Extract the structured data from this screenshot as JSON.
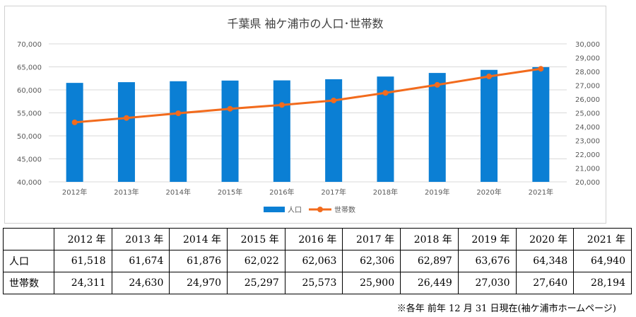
{
  "chart_data": {
    "type": "bar+line",
    "title": "千葉県 袖ケ浦市の人口･世帯数",
    "categories": [
      "2012年",
      "2013年",
      "2014年",
      "2015年",
      "2016年",
      "2017年",
      "2018年",
      "2019年",
      "2020年",
      "2021年"
    ],
    "series": [
      {
        "name": "人口",
        "type": "bar",
        "axis": "left",
        "color": "#0b7fd4",
        "values": [
          61518,
          61674,
          61876,
          62022,
          62063,
          62306,
          62897,
          63676,
          64348,
          64940
        ]
      },
      {
        "name": "世帯数",
        "type": "line",
        "axis": "right",
        "color": "#f26b1d",
        "values": [
          24311,
          24630,
          24970,
          25297,
          25573,
          25900,
          26449,
          27030,
          27640,
          28194
        ]
      }
    ],
    "y_left": {
      "min": 40000,
      "max": 70000,
      "step": 5000,
      "ticks": [
        "40,000",
        "45,000",
        "50,000",
        "55,000",
        "60,000",
        "65,000",
        "70,000"
      ]
    },
    "y_right": {
      "min": 20000,
      "max": 30000,
      "step": 1000,
      "ticks": [
        "20,000",
        "21,000",
        "22,000",
        "23,000",
        "24,000",
        "25,000",
        "26,000",
        "27,000",
        "28,000",
        "29,000",
        "30,000"
      ]
    },
    "grid": true,
    "legend": "bottom-center"
  },
  "table": {
    "corner": "",
    "headers": [
      "2012 年",
      "2013 年",
      "2014 年",
      "2015 年",
      "2016 年",
      "2017 年",
      "2018 年",
      "2019 年",
      "2020 年",
      "2021 年"
    ],
    "rows": [
      {
        "label": "人口",
        "cells": [
          "61,518",
          "61,674",
          "61,876",
          "62,022",
          "62,063",
          "62,306",
          "62,897",
          "63,676",
          "64,348",
          "64,940"
        ]
      },
      {
        "label": "世帯数",
        "cells": [
          "24,311",
          "24,630",
          "24,970",
          "25,297",
          "25,573",
          "25,900",
          "26,449",
          "27,030",
          "27,640",
          "28,194"
        ]
      }
    ]
  },
  "footnote": "※各年 前年 12 月 31 日現在(袖ケ浦市ホームページ)"
}
